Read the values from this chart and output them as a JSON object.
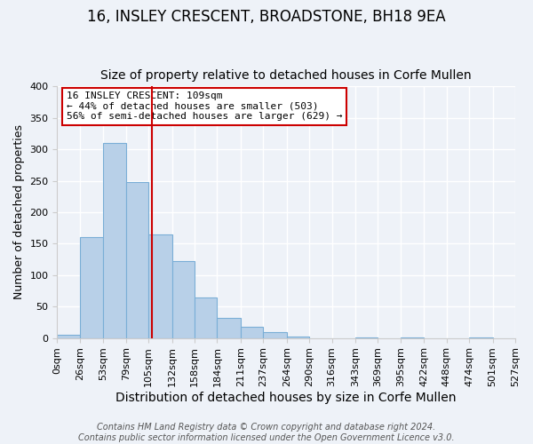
{
  "title": "16, INSLEY CRESCENT, BROADSTONE, BH18 9EA",
  "subtitle": "Size of property relative to detached houses in Corfe Mullen",
  "xlabel": "Distribution of detached houses by size in Corfe Mullen",
  "ylabel": "Number of detached properties",
  "bin_edges": [
    0,
    26,
    53,
    79,
    105,
    132,
    158,
    184,
    211,
    237,
    264,
    290,
    316,
    343,
    369,
    395,
    422,
    448,
    474,
    501,
    527
  ],
  "bin_labels": [
    "0sqm",
    "26sqm",
    "53sqm",
    "79sqm",
    "105sqm",
    "132sqm",
    "158sqm",
    "184sqm",
    "211sqm",
    "237sqm",
    "264sqm",
    "290sqm",
    "316sqm",
    "343sqm",
    "369sqm",
    "395sqm",
    "422sqm",
    "448sqm",
    "474sqm",
    "501sqm",
    "527sqm"
  ],
  "counts": [
    5,
    160,
    310,
    248,
    165,
    122,
    64,
    32,
    18,
    10,
    2,
    0,
    0,
    1,
    0,
    1,
    0,
    0,
    1,
    0
  ],
  "bar_color": "#b8d0e8",
  "bar_edge_color": "#7aaed6",
  "vline_x": 109,
  "vline_color": "#cc0000",
  "ylim": [
    0,
    400
  ],
  "yticks": [
    0,
    50,
    100,
    150,
    200,
    250,
    300,
    350,
    400
  ],
  "annotation_title": "16 INSLEY CRESCENT: 109sqm",
  "annotation_line1": "← 44% of detached houses are smaller (503)",
  "annotation_line2": "56% of semi-detached houses are larger (629) →",
  "annotation_box_facecolor": "#ffffff",
  "annotation_box_edgecolor": "#cc0000",
  "footer1": "Contains HM Land Registry data © Crown copyright and database right 2024.",
  "footer2": "Contains public sector information licensed under the Open Government Licence v3.0.",
  "background_color": "#eef2f8",
  "grid_color": "#ffffff",
  "title_fontsize": 12,
  "subtitle_fontsize": 10,
  "xlabel_fontsize": 10,
  "ylabel_fontsize": 9,
  "tick_fontsize": 8,
  "annotation_fontsize": 8,
  "footer_fontsize": 7
}
